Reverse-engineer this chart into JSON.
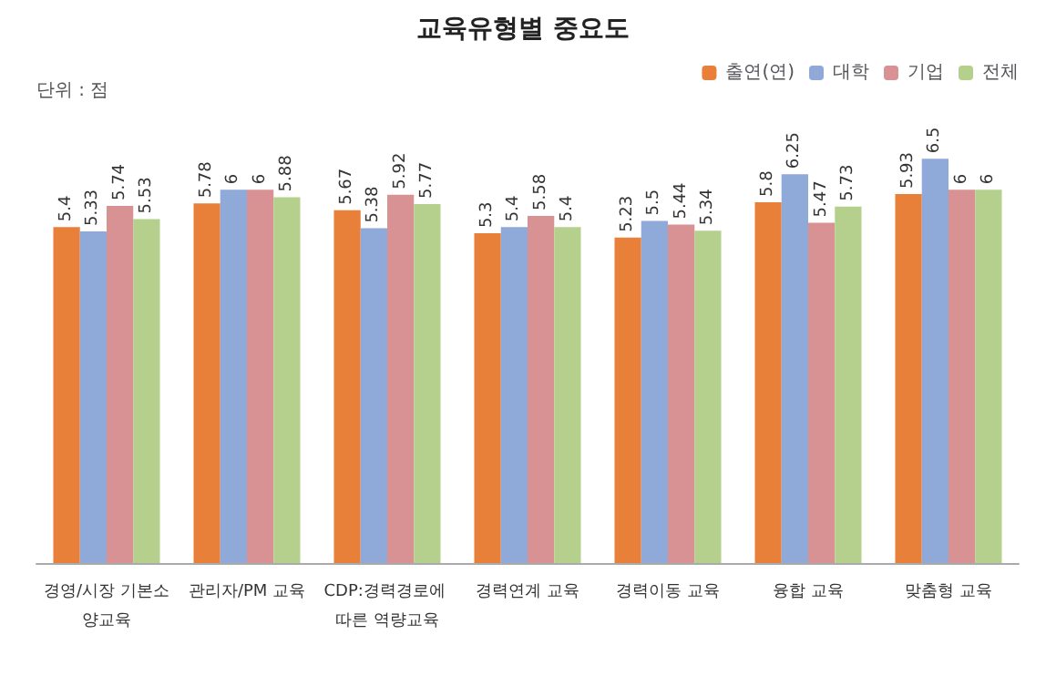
{
  "chart_data": {
    "type": "bar",
    "title": "교육유형별 중요도",
    "annotations": [
      "단위 : 점"
    ],
    "categories": [
      "경영/시장 기본소양교육",
      "관리자/PM 교육",
      "CDP:경력경로에 따른 역량교육",
      "경력연계 교육",
      "경력이동 교육",
      "융합 교육",
      "맞춤형 교육"
    ],
    "series": [
      {
        "name": "출연(연)",
        "color": "#e8803a",
        "values": [
          5.4,
          5.78,
          5.67,
          5.3,
          5.23,
          5.8,
          5.93
        ]
      },
      {
        "name": "대학",
        "color": "#8fa9d8",
        "values": [
          5.33,
          6,
          5.38,
          5.4,
          5.5,
          6.25,
          6.5
        ]
      },
      {
        "name": "기업",
        "color": "#d99294",
        "values": [
          5.74,
          6,
          5.92,
          5.58,
          5.44,
          5.47,
          6
        ]
      },
      {
        "name": "전체",
        "color": "#b5d08d",
        "values": [
          5.53,
          5.88,
          5.77,
          5.4,
          5.34,
          5.73,
          6
        ]
      }
    ],
    "data_labels": true,
    "legend": "top right",
    "grid": false,
    "tick_labels": "x"
  }
}
